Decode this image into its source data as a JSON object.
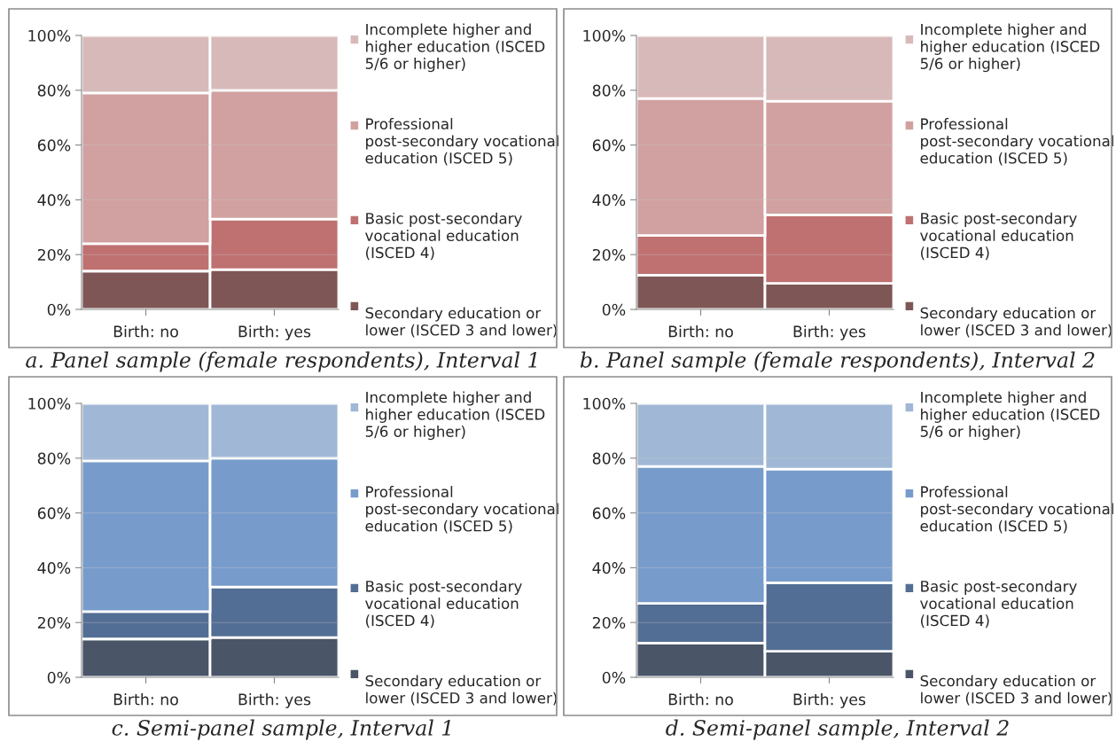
{
  "chart_data": [
    {
      "type": "bar",
      "stacked": true,
      "title": "a. Panel sample (female respondents), Interval 1",
      "categories": [
        "Birth: no",
        "Birth: yes"
      ],
      "ylim": [
        0,
        100
      ],
      "yticks": [
        {
          "value": 0,
          "label": "0%"
        },
        {
          "value": 20,
          "label": "20%"
        },
        {
          "value": 40,
          "label": "40%"
        },
        {
          "value": 60,
          "label": "60%"
        },
        {
          "value": 80,
          "label": "80%"
        },
        {
          "value": 100,
          "label": "100%"
        }
      ],
      "grid": "y",
      "legend": "right",
      "series": [
        {
          "name": "Secondary education or lower (ISCED 3 and lower)",
          "color": "#7f5656",
          "values": [
            14,
            14.5
          ]
        },
        {
          "name": "Basic post-secondary vocational education (ISCED 4)",
          "color": "#bf7070",
          "values": [
            10,
            18.5
          ]
        },
        {
          "name": "Professional post-secondary vocational education (ISCED 5)",
          "color": "#d1a0a0",
          "values": [
            55,
            47
          ]
        },
        {
          "name": "Incomplete higher and higher education (ISCED 5/6 or higher)",
          "color": "#d8b9b9",
          "values": [
            21,
            20
          ]
        }
      ]
    },
    {
      "type": "bar",
      "stacked": true,
      "title": "b. Panel sample (female respondents), Interval 2",
      "categories": [
        "Birth: no",
        "Birth: yes"
      ],
      "ylim": [
        0,
        100
      ],
      "yticks": [
        {
          "value": 0,
          "label": "0%"
        },
        {
          "value": 20,
          "label": "20%"
        },
        {
          "value": 40,
          "label": "40%"
        },
        {
          "value": 60,
          "label": "60%"
        },
        {
          "value": 80,
          "label": "80%"
        },
        {
          "value": 100,
          "label": "100%"
        }
      ],
      "grid": "y",
      "legend": "right",
      "series": [
        {
          "name": "Secondary education or lower (ISCED 3 and lower)",
          "color": "#7f5656",
          "values": [
            12.5,
            9.5
          ]
        },
        {
          "name": "Basic post-secondary vocational education (ISCED 4)",
          "color": "#bf7070",
          "values": [
            14.5,
            25
          ]
        },
        {
          "name": "Professional post-secondary vocational education (ISCED 5)",
          "color": "#d1a0a0",
          "values": [
            50,
            41.5
          ]
        },
        {
          "name": "Incomplete higher and higher education (ISCED 5/6 or higher)",
          "color": "#d8b9b9",
          "values": [
            23,
            24
          ]
        }
      ]
    },
    {
      "type": "bar",
      "stacked": true,
      "title": "c. Semi-panel sample, Interval 1",
      "categories": [
        "Birth: no",
        "Birth: yes"
      ],
      "ylim": [
        0,
        100
      ],
      "yticks": [
        {
          "value": 0,
          "label": "0%"
        },
        {
          "value": 20,
          "label": "20%"
        },
        {
          "value": 40,
          "label": "40%"
        },
        {
          "value": 60,
          "label": "60%"
        },
        {
          "value": 80,
          "label": "80%"
        },
        {
          "value": 100,
          "label": "100%"
        }
      ],
      "grid": "y",
      "legend": "right",
      "series": [
        {
          "name": "Secondary education or lower (ISCED 3 and lower)",
          "color": "#4a5568",
          "values": [
            14,
            14.5
          ]
        },
        {
          "name": "Basic post-secondary vocational education (ISCED 4)",
          "color": "#536e94",
          "values": [
            10,
            18.5
          ]
        },
        {
          "name": "Professional post-secondary vocational education (ISCED 5)",
          "color": "#779ccb",
          "values": [
            55,
            47
          ]
        },
        {
          "name": "Incomplete higher and higher education (ISCED 5/6 or higher)",
          "color": "#a0b8d6",
          "values": [
            21,
            20
          ]
        }
      ]
    },
    {
      "type": "bar",
      "stacked": true,
      "title": "d. Semi-panel sample, Interval 2",
      "categories": [
        "Birth: no",
        "Birth: yes"
      ],
      "ylim": [
        0,
        100
      ],
      "yticks": [
        {
          "value": 0,
          "label": "0%"
        },
        {
          "value": 20,
          "label": "20%"
        },
        {
          "value": 40,
          "label": "40%"
        },
        {
          "value": 60,
          "label": "60%"
        },
        {
          "value": 80,
          "label": "80%"
        },
        {
          "value": 100,
          "label": "100%"
        }
      ],
      "grid": "y",
      "legend": "right",
      "series": [
        {
          "name": "Secondary education or lower (ISCED 3 and lower)",
          "color": "#4a5568",
          "values": [
            12.5,
            9.5
          ]
        },
        {
          "name": "Basic post-secondary vocational education (ISCED 4)",
          "color": "#536e94",
          "values": [
            14.5,
            25
          ]
        },
        {
          "name": "Professional post-secondary vocational education (ISCED 5)",
          "color": "#779ccb",
          "values": [
            50,
            41.5
          ]
        },
        {
          "name": "Incomplete higher and higher education (ISCED 5/6 or higher)",
          "color": "#a0b8d6",
          "values": [
            23,
            24
          ]
        }
      ]
    }
  ]
}
